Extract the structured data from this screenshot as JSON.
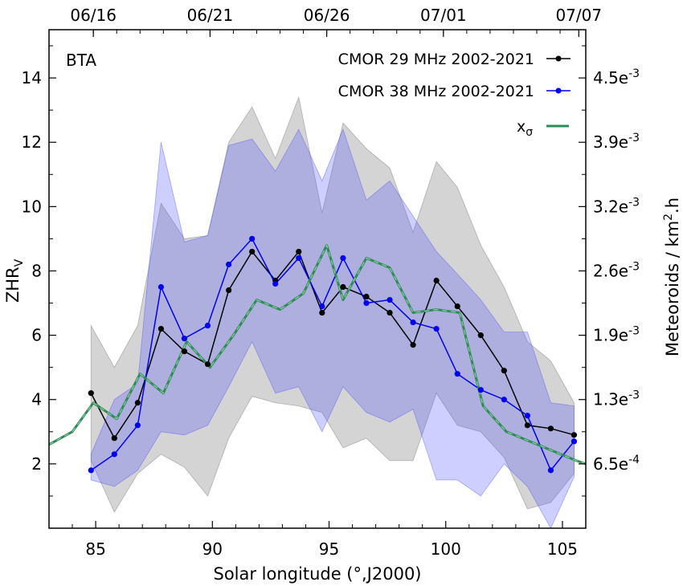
{
  "chart_data": {
    "type": "line",
    "annotation": "BTA",
    "xlabel": "Solar longitude (°,J2000)",
    "ylabel": "ZHR",
    "ylabel_sub": "V",
    "y2label_main": "Meteoroids / km",
    "y2label_sup": "2",
    "y2label_tail": ".h",
    "xlim": [
      83,
      106
    ],
    "ylim": [
      0,
      15.5
    ],
    "x_ticks": [
      85,
      90,
      95,
      100,
      105
    ],
    "x_tick_labels": [
      "85",
      "90",
      "95",
      "100",
      "105"
    ],
    "y_ticks": [
      2,
      4,
      6,
      8,
      10,
      12,
      14
    ],
    "y_tick_labels": [
      "2",
      "4",
      "6",
      "8",
      "10",
      "12",
      "14"
    ],
    "top_ticks": [
      84.9,
      89.9,
      94.9,
      99.9,
      105.7
    ],
    "top_tick_labels": [
      "06/16",
      "06/21",
      "06/26",
      "07/01",
      "07/07"
    ],
    "right_ticks": [
      2,
      4,
      6,
      8,
      10,
      12,
      14
    ],
    "right_tick_bases": [
      "6.5e",
      "1.3e",
      "1.9e",
      "2.6e",
      "3.2e",
      "3.9e",
      "4.5e"
    ],
    "right_tick_exps": [
      "-4",
      "-3",
      "-3",
      "-3",
      "-3",
      "-3",
      "-3"
    ],
    "legend": [
      {
        "label": "CMOR 29 MHz 2002-2021",
        "color": "#000000",
        "marker": "dot"
      },
      {
        "label": "CMOR 38 MHz 2002-2021",
        "color": "#0000ee",
        "marker": "dot"
      },
      {
        "label": "x",
        "sub": "σ",
        "color": "#2e8b57",
        "marker": "dash"
      }
    ],
    "series": [
      {
        "name": "CMOR 29 MHz 2002-2021",
        "color": "#000000",
        "x": [
          84.8,
          85.8,
          86.8,
          87.8,
          88.8,
          89.8,
          90.7,
          91.7,
          92.7,
          93.7,
          94.7,
          95.6,
          96.6,
          97.6,
          98.6,
          99.6,
          100.5,
          101.5,
          102.5,
          103.5,
          104.5,
          105.5
        ],
        "values": [
          4.2,
          2.8,
          3.9,
          6.2,
          5.5,
          5.1,
          7.4,
          8.6,
          7.7,
          8.6,
          6.7,
          7.5,
          7.2,
          6.7,
          5.7,
          7.7,
          6.9,
          6.0,
          4.9,
          3.2,
          3.1,
          2.9
        ],
        "band_upper": [
          6.3,
          5.0,
          6.3,
          10.1,
          9.0,
          9.1,
          12.0,
          13.1,
          11.5,
          13.4,
          9.8,
          12.6,
          11.8,
          11.2,
          9.2,
          11.4,
          10.6,
          8.8,
          7.5,
          5.8,
          5.2,
          3.9
        ],
        "band_lower": [
          2.1,
          0.5,
          1.7,
          2.3,
          1.9,
          1.0,
          2.8,
          4.1,
          3.9,
          3.8,
          3.6,
          2.5,
          2.8,
          2.1,
          2.1,
          4.2,
          3.2,
          3.0,
          2.2,
          0.6,
          0.8,
          1.7
        ]
      },
      {
        "name": "CMOR 38 MHz 2002-2021",
        "color": "#0000ee",
        "x": [
          84.8,
          85.8,
          86.8,
          87.8,
          88.8,
          89.8,
          90.7,
          91.7,
          92.7,
          93.7,
          94.7,
          95.6,
          96.6,
          97.6,
          98.6,
          99.6,
          100.5,
          101.5,
          102.5,
          103.5,
          104.5,
          105.5
        ],
        "values": [
          1.8,
          2.3,
          3.2,
          7.5,
          5.9,
          6.3,
          8.2,
          9.0,
          7.6,
          8.4,
          6.9,
          8.4,
          7.0,
          7.1,
          6.4,
          6.2,
          4.8,
          4.3,
          4.0,
          3.5,
          1.8,
          2.7
        ],
        "band_upper": [
          2.3,
          4.0,
          4.5,
          12.0,
          8.9,
          9.1,
          11.9,
          12.1,
          11.1,
          12.4,
          10.8,
          12.4,
          10.2,
          10.8,
          9.7,
          8.6,
          7.9,
          7.1,
          6.1,
          6.1,
          3.9,
          3.8
        ],
        "band_lower": [
          1.5,
          1.3,
          1.8,
          3.0,
          2.9,
          3.2,
          4.4,
          5.8,
          4.2,
          4.4,
          3.0,
          4.4,
          3.6,
          3.3,
          3.7,
          1.5,
          1.5,
          1.0,
          2.0,
          1.3,
          0.0,
          1.6
        ]
      },
      {
        "name": "xσ",
        "color": "#2e8b57",
        "x": [
          83.0,
          84.0,
          84.9,
          85.9,
          86.9,
          87.9,
          88.9,
          89.9,
          90.9,
          91.9,
          92.9,
          93.9,
          94.9,
          95.6,
          96.6,
          97.6,
          98.6,
          99.6,
          100.6,
          101.6,
          102.6,
          103.6,
          104.6,
          105.6,
          106.0
        ],
        "values": [
          2.6,
          3.0,
          3.9,
          3.4,
          4.8,
          4.2,
          5.8,
          5.0,
          6.0,
          7.1,
          6.8,
          7.3,
          8.8,
          7.1,
          8.4,
          8.1,
          6.7,
          6.8,
          6.7,
          3.8,
          3.0,
          2.7,
          2.4,
          2.1,
          2.0
        ]
      }
    ]
  }
}
